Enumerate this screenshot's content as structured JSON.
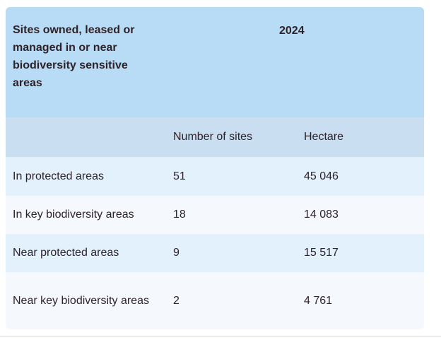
{
  "table": {
    "title": "Sites owned, leased or managed in or near biodiversity sensitive areas",
    "year_header": "2024",
    "column_headers": {
      "sites": "Number of sites",
      "hectare": "Hectare"
    },
    "rows": [
      {
        "label": "In protected areas",
        "sites": "51",
        "hectare": "45 046"
      },
      {
        "label": "In key biodiversity areas",
        "sites": "18",
        "hectare": "14 083"
      },
      {
        "label": "Near protected areas",
        "sites": "9",
        "hectare": "15 517"
      },
      {
        "label": "Near key biodiversity areas",
        "sites": "2",
        "hectare": "4 761"
      }
    ]
  },
  "chart_data": {
    "type": "table",
    "title": "Sites owned, leased or managed in or near biodiversity sensitive areas",
    "year": "2024",
    "columns": [
      "",
      "Number of sites",
      "Hectare"
    ],
    "rows": [
      [
        "In protected areas",
        51,
        45046
      ],
      [
        "In key biodiversity areas",
        18,
        14083
      ],
      [
        "Near protected areas",
        9,
        15517
      ],
      [
        "Near key biodiversity areas",
        2,
        4761
      ]
    ]
  },
  "colors": {
    "header_bg": "#b8dcf6",
    "colhead_bg": "#c9def0",
    "row_odd_bg": "#e3f1fd",
    "row_even_bg": "#f5f9fe",
    "text": "#2e2228",
    "divider": "#d8d8d8",
    "page_bg": "#ffffff"
  }
}
